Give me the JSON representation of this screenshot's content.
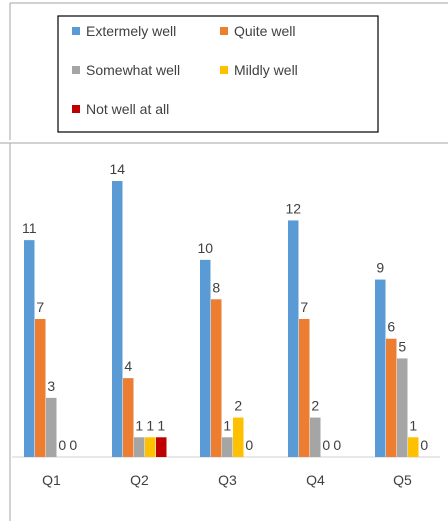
{
  "chart_data": {
    "type": "bar",
    "title": "",
    "xlabel": "",
    "ylabel": "",
    "categories": [
      "Q1",
      "Q2",
      "Q3",
      "Q4",
      "Q5"
    ],
    "ylim": [
      0,
      14
    ],
    "grid": false,
    "legend_position": "top",
    "series": [
      {
        "name": "Extermely well",
        "color": "#5b9bd5",
        "values": [
          11,
          14,
          10,
          12,
          9
        ]
      },
      {
        "name": "Quite well",
        "color": "#ed7d31",
        "values": [
          7,
          4,
          8,
          7,
          6
        ]
      },
      {
        "name": "Somewhat well",
        "color": "#a5a5a5",
        "values": [
          3,
          1,
          1,
          2,
          5
        ]
      },
      {
        "name": "Mildly well",
        "color": "#ffc000",
        "values": [
          0,
          1,
          2,
          0,
          1
        ]
      },
      {
        "name": "Not  well at all",
        "color": "#c00000",
        "values": [
          0,
          1,
          0,
          0,
          0
        ]
      }
    ]
  }
}
